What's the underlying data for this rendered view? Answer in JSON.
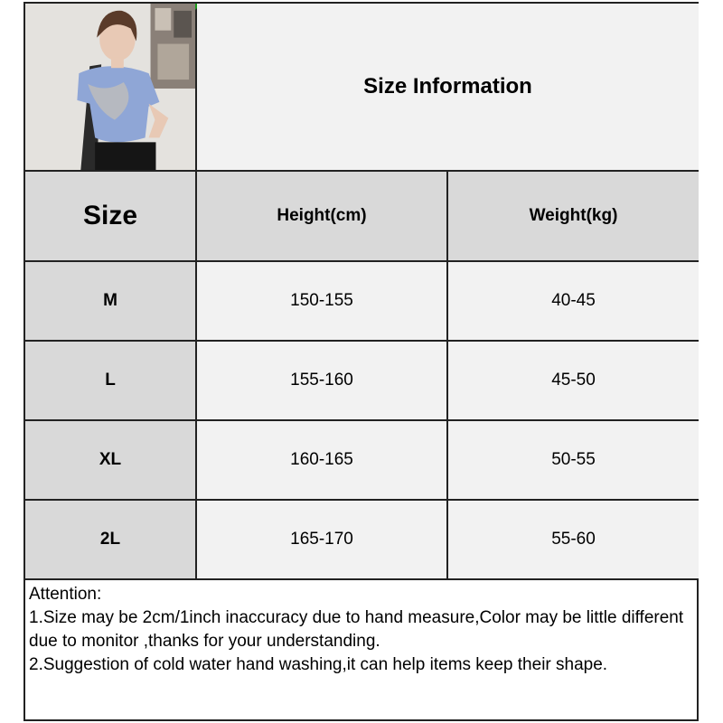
{
  "title": "Size Information",
  "table": {
    "headers": [
      "Size",
      "Height(cm)",
      "Weight(kg)"
    ],
    "rows": [
      [
        "M",
        "150-155",
        "40-45"
      ],
      [
        "L",
        "155-160",
        "45-50"
      ],
      [
        "XL",
        "160-165",
        "50-55"
      ],
      [
        "2L",
        "165-170",
        "55-60"
      ]
    ]
  },
  "notes": {
    "heading": "Attention:",
    "lines": [
      "1.Size may be 2cm/1inch inaccuracy due to hand measure,Color may be little different due to monitor ,thanks for your understanding.",
      "2.Suggestion of cold water hand washing,it can help items keep their shape."
    ]
  },
  "colors": {
    "header_bg": "#d9d9d9",
    "cell_bg": "#f2f2f2",
    "border": "#222222"
  },
  "image": {
    "subject": "model-wearing-blue-tie-dye-crop-tee"
  }
}
